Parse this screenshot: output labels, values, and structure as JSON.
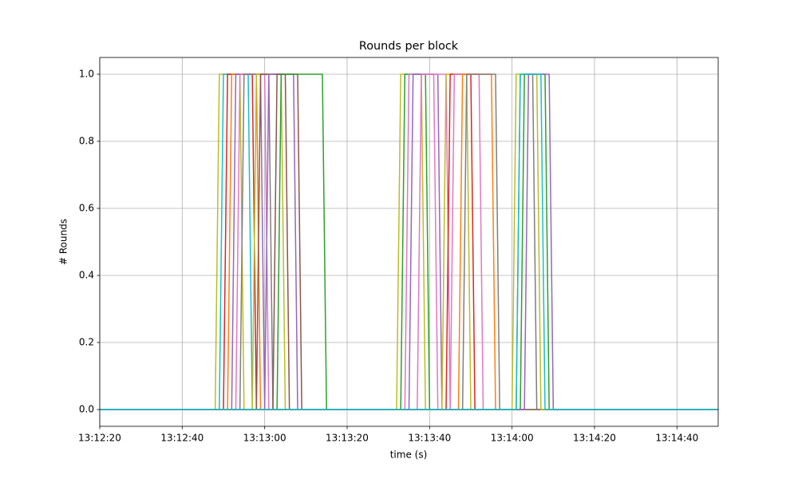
{
  "chart_data": {
    "type": "line",
    "title": "Rounds per block",
    "x_label": "time (s)",
    "y_label": "# Rounds",
    "xlim": [
      "13:12:20",
      "13:14:50"
    ],
    "xticks": [
      "13:12:20",
      "13:12:40",
      "13:13:00",
      "13:13:20",
      "13:13:40",
      "13:14:00",
      "13:14:20",
      "13:14:40"
    ],
    "ylim": [
      -0.05,
      1.05
    ],
    "yticks": [
      {
        "value": 0,
        "label": "0.0"
      },
      0.2,
      0.4,
      0.6,
      0.8,
      {
        "value": 1,
        "label": "1.0"
      }
    ],
    "grid": true,
    "series": [
      {
        "color": "#bcbd22",
        "x": [
          "13:12:20",
          "13:12:48",
          "13:12:49",
          "13:12:54",
          "13:12:55",
          "13:14:50"
        ],
        "values": [
          0,
          0,
          1,
          1,
          0,
          0
        ]
      },
      {
        "color": "#17becf",
        "x": [
          "13:12:20",
          "13:12:49",
          "13:12:50",
          "13:12:56",
          "13:12:57",
          "13:14:50"
        ],
        "values": [
          0,
          0,
          1,
          1,
          0,
          0
        ]
      },
      {
        "color": "#d62728",
        "x": [
          "13:12:20",
          "13:12:50",
          "13:12:51",
          "13:12:57",
          "13:12:58",
          "13:14:50"
        ],
        "values": [
          0,
          0,
          1,
          1,
          0,
          0
        ]
      },
      {
        "color": "#ff7f0e",
        "x": [
          "13:12:20",
          "13:12:51",
          "13:12:52",
          "13:12:58",
          "13:12:59",
          "13:14:50"
        ],
        "values": [
          0,
          0,
          1,
          1,
          0,
          0
        ]
      },
      {
        "color": "#9467bd",
        "x": [
          "13:12:20",
          "13:12:52",
          "13:12:53",
          "13:12:59",
          "13:13:00",
          "13:14:50"
        ],
        "values": [
          0,
          0,
          1,
          1,
          0,
          0
        ]
      },
      {
        "color": "#e377c2",
        "x": [
          "13:12:20",
          "13:12:53",
          "13:12:54",
          "13:13:00",
          "13:13:01",
          "13:14:50"
        ],
        "values": [
          0,
          0,
          1,
          1,
          0,
          0
        ]
      },
      {
        "color": "#7f7f7f",
        "x": [
          "13:12:20",
          "13:12:54",
          "13:12:55",
          "13:13:01",
          "13:13:02",
          "13:14:50"
        ],
        "values": [
          0,
          0,
          1,
          1,
          0,
          0
        ]
      },
      {
        "color": "#bcbd22",
        "x": [
          "13:12:20",
          "13:12:57",
          "13:12:58",
          "13:13:04",
          "13:13:05",
          "13:14:50"
        ],
        "values": [
          0,
          0,
          1,
          1,
          0,
          0
        ]
      },
      {
        "color": "#8c564b",
        "x": [
          "13:12:20",
          "13:12:58",
          "13:12:59",
          "13:13:05",
          "13:13:06",
          "13:14:50"
        ],
        "values": [
          0,
          0,
          1,
          1,
          0,
          0
        ]
      },
      {
        "color": "#9467bd",
        "x": [
          "13:12:20",
          "13:13:00",
          "13:13:01",
          "13:13:07",
          "13:13:08",
          "13:14:50"
        ],
        "values": [
          0,
          0,
          1,
          1,
          0,
          0
        ]
      },
      {
        "color": "#8c564b",
        "x": [
          "13:12:20",
          "13:13:02",
          "13:13:03",
          "13:13:08",
          "13:13:09",
          "13:14:50"
        ],
        "values": [
          0,
          0,
          1,
          1,
          0,
          0
        ]
      },
      {
        "color": "#2ca02c",
        "x": [
          "13:12:20",
          "13:13:03",
          "13:13:04",
          "13:13:14",
          "13:13:15",
          "13:14:50"
        ],
        "values": [
          0,
          0,
          1,
          1,
          0,
          0
        ]
      },
      {
        "color": "#bcbd22",
        "x": [
          "13:12:20",
          "13:13:32",
          "13:13:33",
          "13:13:38",
          "13:13:39",
          "13:14:50"
        ],
        "values": [
          0,
          0,
          1,
          1,
          0,
          0
        ]
      },
      {
        "color": "#2ca02c",
        "x": [
          "13:12:20",
          "13:13:33",
          "13:13:34",
          "13:13:39",
          "13:13:40",
          "13:14:50"
        ],
        "values": [
          0,
          0,
          1,
          1,
          0,
          0
        ]
      },
      {
        "color": "#e377c2",
        "x": [
          "13:12:20",
          "13:13:34",
          "13:13:35",
          "13:13:41",
          "13:13:42",
          "13:14:50"
        ],
        "values": [
          0,
          0,
          1,
          1,
          0,
          0
        ]
      },
      {
        "color": "#9467bd",
        "x": [
          "13:12:20",
          "13:13:35",
          "13:13:36",
          "13:13:42",
          "13:13:43",
          "13:14:50"
        ],
        "values": [
          0,
          0,
          1,
          1,
          0,
          0
        ]
      },
      {
        "color": "#e377c2",
        "x": [
          "13:12:20",
          "13:13:37",
          "13:13:38",
          "13:13:44",
          "13:13:45",
          "13:14:50"
        ],
        "values": [
          0,
          0,
          1,
          1,
          0,
          0
        ]
      },
      {
        "color": "#bcbd22",
        "x": [
          "13:12:20",
          "13:13:43",
          "13:13:44",
          "13:13:49",
          "13:13:50",
          "13:14:50"
        ],
        "values": [
          0,
          0,
          1,
          1,
          0,
          0
        ]
      },
      {
        "color": "#d62728",
        "x": [
          "13:12:20",
          "13:13:44",
          "13:13:45",
          "13:13:50",
          "13:13:51",
          "13:14:50"
        ],
        "values": [
          0,
          0,
          1,
          1,
          0,
          0
        ]
      },
      {
        "color": "#e377c2",
        "x": [
          "13:12:20",
          "13:13:45",
          "13:13:46",
          "13:13:52",
          "13:13:53",
          "13:14:50"
        ],
        "values": [
          0,
          0,
          1,
          1,
          0,
          0
        ]
      },
      {
        "color": "#ff7f0e",
        "x": [
          "13:12:20",
          "13:13:47",
          "13:13:48",
          "13:13:55",
          "13:13:56",
          "13:14:50"
        ],
        "values": [
          0,
          0,
          1,
          1,
          0,
          0
        ]
      },
      {
        "color": "#7f7f7f",
        "x": [
          "13:12:20",
          "13:13:48",
          "13:13:49",
          "13:13:56",
          "13:13:57",
          "13:14:50"
        ],
        "values": [
          0,
          0,
          1,
          1,
          0,
          0
        ]
      },
      {
        "color": "#7f7f7f",
        "x": [
          "13:12:20",
          "13:14:01",
          "13:14:02",
          "13:14:05",
          "13:14:06",
          "13:14:50"
        ],
        "values": [
          0,
          0,
          1,
          1,
          0,
          0
        ]
      },
      {
        "color": "#bcbd22",
        "x": [
          "13:12:20",
          "13:14:00",
          "13:14:01",
          "13:14:06",
          "13:14:07",
          "13:14:50"
        ],
        "values": [
          0,
          0,
          1,
          1,
          0,
          0
        ]
      },
      {
        "color": "#2ca02c",
        "x": [
          "13:12:20",
          "13:14:02",
          "13:14:03",
          "13:14:08",
          "13:14:09",
          "13:14:50"
        ],
        "values": [
          0,
          0,
          1,
          1,
          0,
          0
        ]
      },
      {
        "color": "#9467bd",
        "x": [
          "13:12:20",
          "13:14:03",
          "13:14:04",
          "13:14:09",
          "13:14:10",
          "13:14:50"
        ],
        "values": [
          0,
          0,
          1,
          1,
          0,
          0
        ]
      },
      {
        "color": "#17becf",
        "x": [
          "13:12:20",
          "13:14:01",
          "13:14:02",
          "13:14:07",
          "13:14:08",
          "13:14:50"
        ],
        "values": [
          0,
          0,
          1,
          1,
          0,
          0
        ]
      }
    ]
  }
}
